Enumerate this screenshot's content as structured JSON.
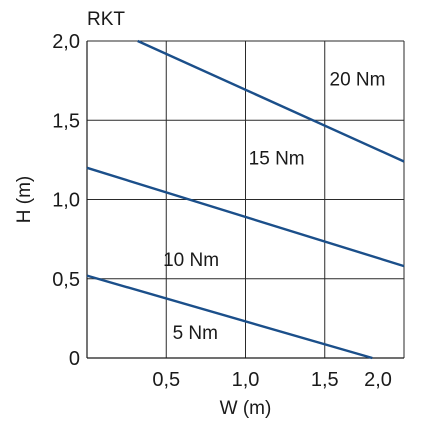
{
  "chart_data": {
    "type": "line",
    "title": "RKT",
    "xlabel": "W (m)",
    "ylabel": "H (m)",
    "xlim": [
      0,
      2.0
    ],
    "ylim": [
      0,
      2.0
    ],
    "x_ticks": [
      "0,5",
      "1,0",
      "1,5",
      "2,0"
    ],
    "y_ticks": [
      "0",
      "0,5",
      "1,0",
      "1,5",
      "2,0"
    ],
    "grid": true,
    "line_color": "#1b4f8a",
    "series": [
      {
        "x": [
          0.0,
          1.8
        ],
        "y": [
          0.52,
          0.0
        ]
      },
      {
        "x": [
          0.0,
          2.0
        ],
        "y": [
          1.2,
          0.58
        ]
      },
      {
        "x": [
          0.32,
          2.0
        ],
        "y": [
          2.0,
          1.24
        ]
      }
    ],
    "annotations": [
      {
        "text": "5 Nm",
        "x": 0.54,
        "y": 0.12
      },
      {
        "text": "10 Nm",
        "x": 0.48,
        "y": 0.58
      },
      {
        "text": "15 Nm",
        "x": 1.02,
        "y": 1.22
      },
      {
        "text": "20 Nm",
        "x": 1.53,
        "y": 1.72
      }
    ]
  }
}
